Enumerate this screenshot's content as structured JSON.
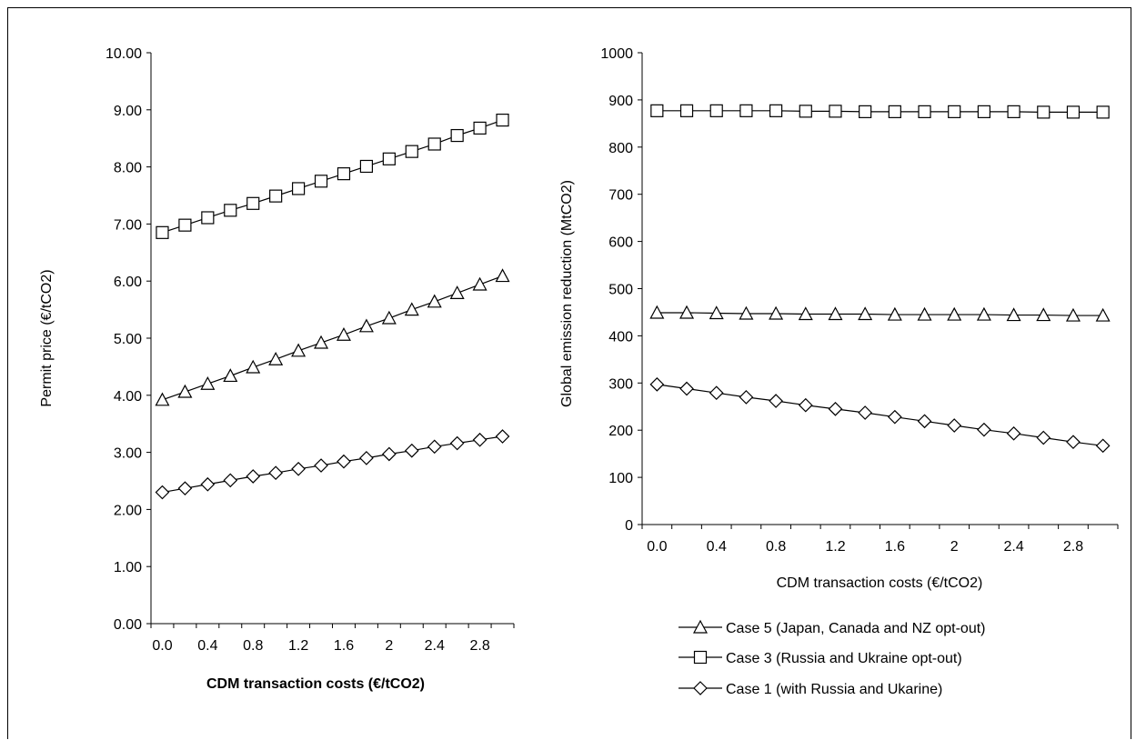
{
  "chart_data": [
    {
      "type": "line",
      "title": "",
      "xlabel": "CDM transaction costs (€/tCO2)",
      "ylabel": "Permit price (€/tCO2)",
      "ylim": [
        0,
        10
      ],
      "yticks": [
        "0.00",
        "1.00",
        "2.00",
        "3.00",
        "4.00",
        "5.00",
        "6.00",
        "7.00",
        "8.00",
        "9.00",
        "10.00"
      ],
      "xticks": [
        "0.0",
        "0.4",
        "0.8",
        "1.2",
        "1.6",
        "2",
        "2.4",
        "2.8"
      ],
      "x": [
        0.0,
        0.2,
        0.4,
        0.6,
        0.8,
        1.0,
        1.2,
        1.4,
        1.6,
        1.8,
        2.0,
        2.2,
        2.4,
        2.6,
        2.8,
        3.0
      ],
      "series": [
        {
          "name": "Case 3 (Russia and Ukraine opt-out)",
          "marker": "square",
          "values": [
            6.85,
            6.98,
            7.11,
            7.24,
            7.36,
            7.49,
            7.62,
            7.75,
            7.88,
            8.01,
            8.14,
            8.27,
            8.4,
            8.55,
            8.68,
            8.82
          ]
        },
        {
          "name": "Case 5 (Japan, Canada and NZ opt-out)",
          "marker": "triangle",
          "values": [
            3.92,
            4.06,
            4.2,
            4.34,
            4.49,
            4.63,
            4.78,
            4.92,
            5.06,
            5.21,
            5.35,
            5.5,
            5.64,
            5.79,
            5.94,
            6.09
          ]
        },
        {
          "name": "Case 1 (with Russia and Ukarine)",
          "marker": "diamond",
          "values": [
            2.3,
            2.37,
            2.44,
            2.51,
            2.58,
            2.64,
            2.71,
            2.77,
            2.84,
            2.9,
            2.97,
            3.03,
            3.1,
            3.16,
            3.22,
            3.28
          ]
        }
      ]
    },
    {
      "type": "line",
      "title": "",
      "xlabel": "CDM transaction costs (€/tCO2)",
      "ylabel": "Global emission reduction (MtCO2)",
      "ylim": [
        0,
        1000
      ],
      "yticks": [
        "0",
        "100",
        "200",
        "300",
        "400",
        "500",
        "600",
        "700",
        "800",
        "900",
        "1000"
      ],
      "xticks": [
        "0.0",
        "0.4",
        "0.8",
        "1.2",
        "1.6",
        "2",
        "2.4",
        "2.8"
      ],
      "x": [
        0.0,
        0.2,
        0.4,
        0.6,
        0.8,
        1.0,
        1.2,
        1.4,
        1.6,
        1.8,
        2.0,
        2.2,
        2.4,
        2.6,
        2.8,
        3.0
      ],
      "series": [
        {
          "name": "Case 3 (Russia and Ukraine opt-out)",
          "marker": "square",
          "values": [
            877,
            877,
            877,
            877,
            877,
            876,
            876,
            875,
            875,
            875,
            875,
            875,
            875,
            874,
            874,
            874
          ]
        },
        {
          "name": "Case 5 (Japan, Canada and NZ opt-out)",
          "marker": "triangle",
          "values": [
            449,
            449,
            448,
            447,
            447,
            446,
            446,
            446,
            445,
            445,
            445,
            445,
            444,
            444,
            443,
            443
          ]
        },
        {
          "name": "Case 1 (with Russia and Ukarine)",
          "marker": "diamond",
          "values": [
            297,
            288,
            279,
            270,
            262,
            253,
            245,
            237,
            228,
            219,
            210,
            201,
            193,
            184,
            175,
            167
          ]
        }
      ]
    }
  ],
  "legend": [
    {
      "label": "Case 5 (Japan, Canada and NZ opt-out)",
      "marker": "triangle"
    },
    {
      "label": "Case 3 (Russia and Ukraine opt-out)",
      "marker": "square"
    },
    {
      "label": "Case 1 (with Russia and Ukarine)",
      "marker": "diamond"
    }
  ]
}
